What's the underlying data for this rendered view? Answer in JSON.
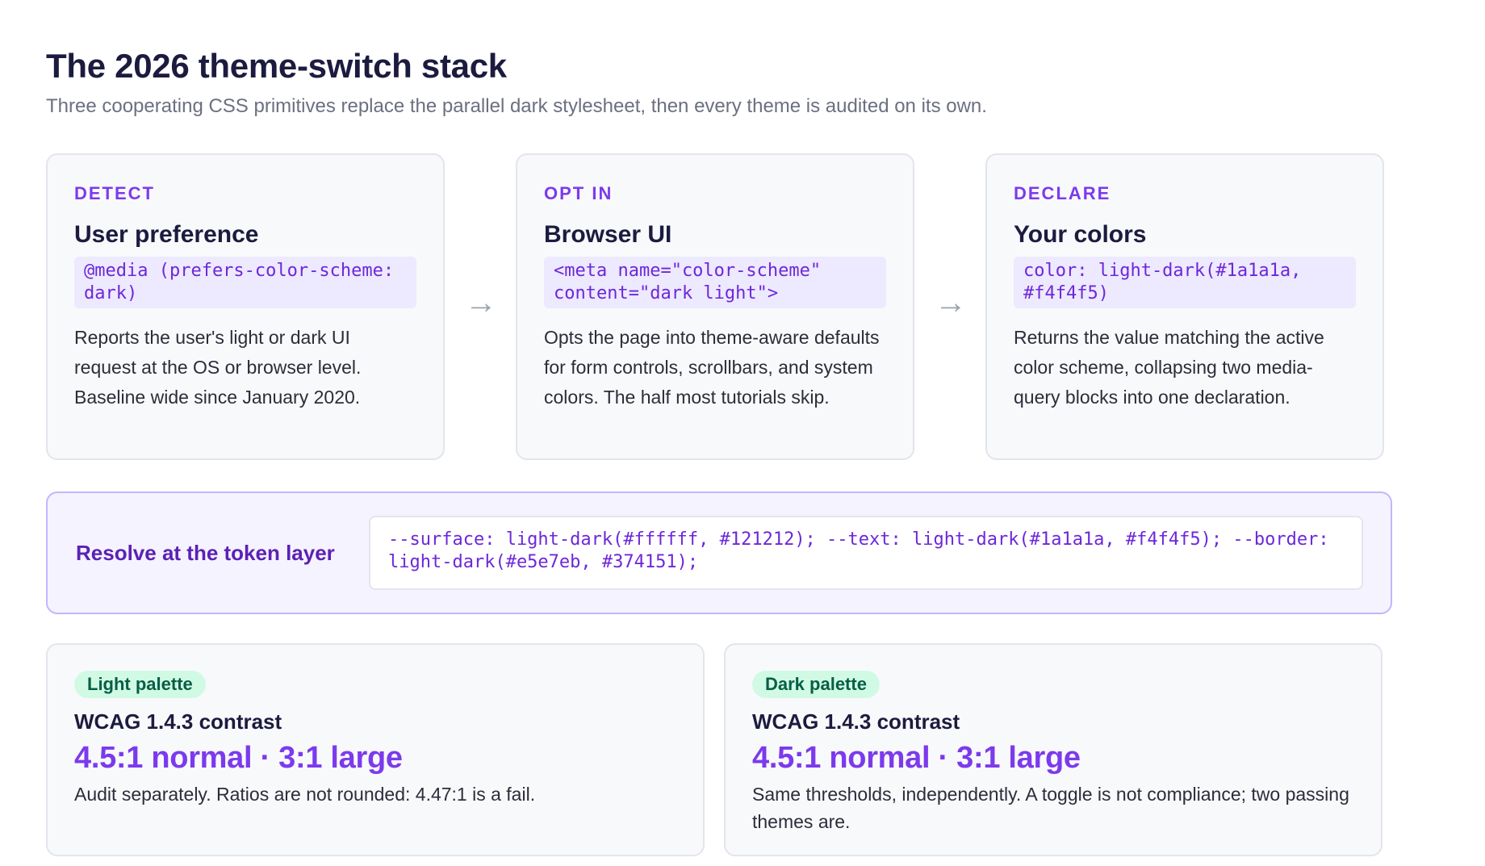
{
  "header": {
    "title": "The 2026 theme-switch stack",
    "subtitle": "Three cooperating CSS primitives replace the parallel dark stylesheet, then every theme is audited on its own."
  },
  "steps": [
    {
      "kicker": "DETECT",
      "title": "User preference",
      "code": "@media (prefers-color-scheme: dark)",
      "description": "Reports the user's light or dark UI request at the OS or browser level. Baseline wide since January 2020."
    },
    {
      "kicker": "OPT IN",
      "title": "Browser UI",
      "code": "<meta name=\"color-scheme\" content=\"dark light\">",
      "description": "Opts the page into theme-aware defaults for form controls, scrollbars, and system colors. The half most tutorials skip."
    },
    {
      "kicker": "DECLARE",
      "title": "Your colors",
      "code": "color: light-dark(#1a1a1a, #f4f4f5)",
      "description": "Returns the value matching the active color scheme, collapsing two media-query blocks into one declaration."
    }
  ],
  "arrow_glyph": "→",
  "token_layer": {
    "label": "Resolve at the token layer",
    "code": "--surface: light-dark(#ffffff, #121212); --text: light-dark(#1a1a1a, #f4f4f5); --border: light-dark(#e5e7eb, #374151);"
  },
  "palettes": [
    {
      "badge": "Light palette",
      "title": "WCAG 1.4.3 contrast",
      "value": "4.5:1 normal · 3:1 large",
      "description": "Audit separately. Ratios are not rounded: 4.47:1 is a fail."
    },
    {
      "badge": "Dark palette",
      "title": "WCAG 1.4.3 contrast",
      "value": "4.5:1 normal · 3:1 large",
      "description": "Same thresholds, independently. A toggle is not compliance; two passing themes are."
    }
  ],
  "colors": {
    "accent": "#7c3aed",
    "heading": "#1c1b3f",
    "badge_bg": "#d1fae5",
    "badge_text": "#065f46"
  }
}
